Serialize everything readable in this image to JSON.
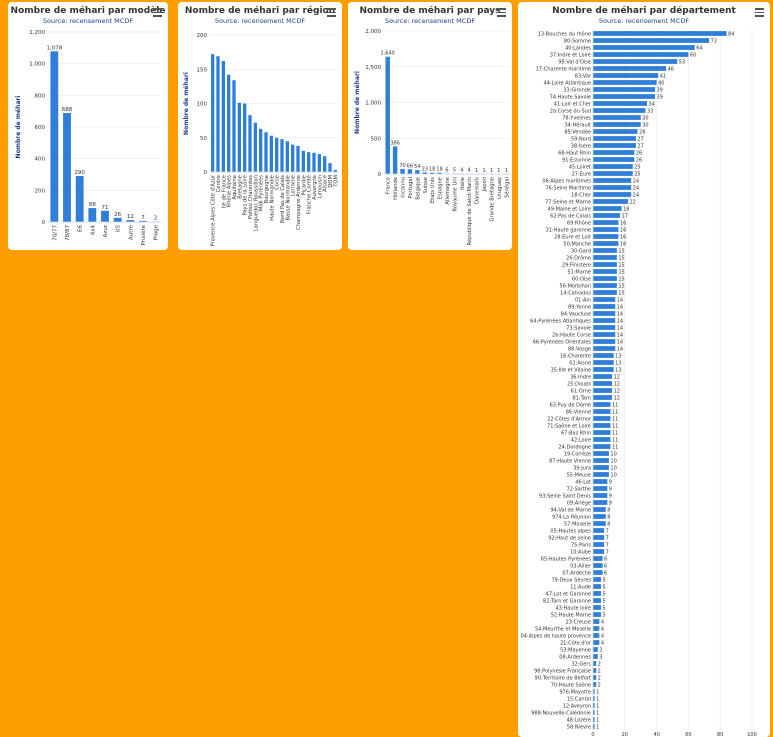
{
  "icons": {
    "menu": "hamburger-menu-icon"
  },
  "colors": {
    "background": "#FF9E00",
    "bar": "#2F7ED8",
    "grid": "#e6e6e6"
  },
  "chart_data": [
    {
      "id": "c0",
      "type": "bar",
      "orientation": "vertical",
      "title": "Nombre de méhari par modèle",
      "subtitle": "Source: recensement MCDF",
      "xlabel": "",
      "ylabel": "Nombre de méhari",
      "ylim": [
        0,
        1200
      ],
      "yticks": [
        0,
        200,
        400,
        600,
        800,
        1000,
        1200
      ],
      "ytick_labels": [
        "0",
        "200",
        "400",
        "600",
        "800",
        "1,000",
        "1,200"
      ],
      "data_labels": true,
      "legend": "none",
      "categories": [
        "70/77",
        "78/87",
        "E6",
        "4x4",
        "Azur",
        "US",
        "Autre",
        "Prisière",
        "Plage"
      ],
      "values": [
        1078,
        688,
        290,
        88,
        71,
        26,
        12,
        7,
        2
      ],
      "value_labels": [
        "1,078",
        "688",
        "290",
        "88",
        "71",
        "26",
        "12",
        "7",
        "2"
      ]
    },
    {
      "id": "c1",
      "type": "bar",
      "orientation": "vertical",
      "title": "Nombre de méhari par région",
      "subtitle": "Source: recensement MCDF",
      "xlabel": "",
      "ylabel": "Nombre de méhari",
      "ylim": [
        0,
        200
      ],
      "yticks": [
        0,
        50,
        100,
        150,
        200
      ],
      "ytick_labels": [
        "0",
        "50",
        "100",
        "150",
        "200"
      ],
      "data_labels": false,
      "legend": "none",
      "categories": [
        "Provence Alpes Côte d'Azur",
        "Centre",
        "Ile de France",
        "Rhône Alpes",
        "Aquitaine",
        "Bretagne",
        "Pays de la Loire",
        "Poitou Charentes",
        "Languedoc Roussillon",
        "Midi Pyrénées",
        "Bourgogne",
        "Haute Normandie",
        "Corse",
        "Nord Pas de Calais",
        "Basse Normandie",
        "Lorraine",
        "Champagne Ardenne",
        "Picardie",
        "Franche Comté",
        "Auvergne",
        "Limousin",
        "Alsace",
        "DOM",
        "TOM"
      ],
      "values": [
        172,
        169,
        162,
        142,
        134,
        101,
        100,
        83,
        72,
        63,
        58,
        53,
        50,
        48,
        45,
        40,
        38,
        31,
        29,
        28,
        26,
        23,
        13,
        3
      ]
    },
    {
      "id": "c2",
      "type": "bar",
      "orientation": "vertical",
      "title": "Nombre de méhari par pays",
      "subtitle": "Source: recensement MCDF",
      "xlabel": "",
      "ylabel": "Nombre de méhari",
      "ylim": [
        0,
        2000
      ],
      "yticks": [
        0,
        500,
        1000,
        1500,
        2000
      ],
      "ytick_labels": [
        "0",
        "500",
        "1,000",
        "1,500",
        "2,000"
      ],
      "data_labels": true,
      "legend": "none",
      "categories": [
        "France",
        "Hollande",
        "Inconnu",
        "Portugal",
        "Belgique",
        "Suisse",
        "Etats Unis",
        "Espagne",
        "Allemagne",
        "Royaume Uni",
        "Italie",
        "République de Saint-Marin",
        "Danemark",
        "Japon",
        "Grande Bretagne",
        "Uruguay",
        "Sénégal"
      ],
      "values": [
        1640,
        386,
        70,
        66,
        54,
        23,
        18,
        18,
        6,
        5,
        4,
        4,
        1,
        1,
        1,
        1,
        1
      ],
      "value_labels": [
        "1,640",
        "386",
        "70",
        "66",
        "54",
        "23",
        "18",
        "18",
        "6",
        "5",
        "4",
        "4",
        "1",
        "1",
        "1",
        "1",
        "1"
      ]
    },
    {
      "id": "c3",
      "type": "bar",
      "orientation": "horizontal",
      "title": "Nombre de méhari par département",
      "subtitle": "Source: recensement MCDF",
      "xlabel": "",
      "ylabel": "",
      "xlim": [
        0,
        100
      ],
      "xticks": [
        0,
        20,
        40,
        60,
        80,
        100
      ],
      "xtick_labels": [
        "0",
        "20",
        "40",
        "60",
        "80",
        "100"
      ],
      "data_labels": true,
      "legend": "none",
      "categories": [
        "13:Bouches du rhône",
        "80:Somme",
        "40:Landes",
        "37:Indre et Loire",
        "95:Val d'Oise",
        "17:Charente maritime",
        "83:Var",
        "44:Loire Atlantique",
        "33:Gironde",
        "74:Haute Savoie",
        "41:Loir et Cher",
        "2a:Corse du Sud",
        "78:Yvelines",
        "34:Hérault",
        "85:Vendée",
        "59:Nord",
        "38:Isère",
        "68:Haut Rhin",
        "91:Essonne",
        "45:Loiret",
        "27:Eure",
        "06:Alpes maritimes",
        "76:Seine Maritime",
        "18:Cher",
        "77:Seine et Marne",
        "49:Maine et Loire",
        "62:Pas de Calais",
        "69:Rhône",
        "31:Haute garonne",
        "28:Eure et Loir",
        "50:Manche",
        "30:Gard",
        "26:Drôme",
        "29:Finistère",
        "51:Marne",
        "60:Oise",
        "56:Morbihan",
        "14:Calvados",
        "01:Ain",
        "89:Yonne",
        "84:Vaucluse",
        "64:Pyrénées Atlantiques",
        "73:Savoie",
        "2b:Haute Corse",
        "66:Pyrénées Orientales",
        "88:Vosge",
        "16:Charente",
        "02:Aisne",
        "35:Ille et Vilaine",
        "36:Indre",
        "25:Doubs",
        "61:Orne",
        "81:Tarn",
        "63:Puy de Dôme",
        "86:Vienne",
        "22:Côtes d'Armor",
        "71:Saône et Loire",
        "67:Bas Rhin",
        "42:Loire",
        "24:Dordogne",
        "19:Corrèze",
        "87:Haute Vienne",
        "39:Jura",
        "55:Meuse",
        "46:Lot",
        "72:Sarthe",
        "93:Seine Saint Denis",
        "09:Ariège",
        "94:Val de Marne",
        "974:La Réunion",
        "57:Moselle",
        "05:Hautes alpes",
        "92:Haut de seine",
        "75:Paris",
        "10:Aube",
        "65:Hautes Pyrénées",
        "03:Allier",
        "07:Ardèche",
        "79:Deux Sèvres",
        "11:Aude",
        "47:Lot et Garonne",
        "82:Tarn et Garonne",
        "43:Haute loire",
        "52:Haute Marne",
        "23:Creuse",
        "54:Meurthe et Moselle",
        "04:Alpes de haute provence",
        "21:Côte d'or",
        "53:Mayenne",
        "08:Ardennes",
        "32:Gers",
        "98:Polynésie Française",
        "90:Territoire de Belfort",
        "70:Haute Saône",
        "976:Mayotte",
        "15:Cantal",
        "12:Aveyron",
        "988:Nouvelle-Calédonie",
        "48:Lozère",
        "58:Nièvre"
      ],
      "values": [
        84,
        73,
        64,
        60,
        53,
        46,
        41,
        40,
        39,
        39,
        34,
        33,
        30,
        30,
        28,
        27,
        27,
        26,
        26,
        25,
        25,
        24,
        24,
        24,
        22,
        18,
        17,
        16,
        16,
        16,
        16,
        15,
        15,
        15,
        15,
        15,
        15,
        15,
        14,
        14,
        14,
        14,
        14,
        14,
        14,
        14,
        13,
        13,
        13,
        12,
        12,
        12,
        12,
        11,
        11,
        11,
        11,
        11,
        11,
        11,
        10,
        10,
        10,
        10,
        9,
        9,
        9,
        9,
        8,
        8,
        8,
        7,
        7,
        7,
        7,
        6,
        6,
        6,
        5,
        5,
        5,
        5,
        5,
        5,
        4,
        4,
        4,
        4,
        3,
        3,
        2,
        2,
        2,
        2,
        1,
        1,
        1,
        1,
        1,
        1
      ]
    }
  ]
}
